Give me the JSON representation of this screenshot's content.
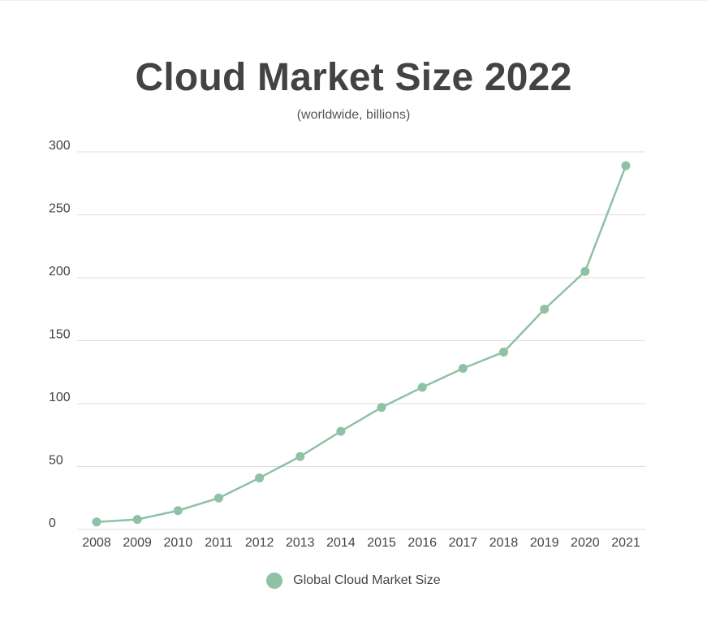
{
  "chart_data": {
    "type": "line",
    "title": "Cloud Market Size 2022",
    "subtitle": "(worldwide, billions)",
    "xlabel": "",
    "ylabel": "",
    "categories": [
      "2008",
      "2009",
      "2010",
      "2011",
      "2012",
      "2013",
      "2014",
      "2015",
      "2016",
      "2017",
      "2018",
      "2019",
      "2020",
      "2021"
    ],
    "series": [
      {
        "name": "Global Cloud Market Size",
        "values": [
          6,
          8,
          15,
          25,
          41,
          58,
          78,
          97,
          113,
          128,
          141,
          175,
          205,
          289
        ],
        "color": "#8fc1a4"
      }
    ],
    "ylim": [
      0,
      300
    ],
    "yticks": [
      "0",
      "50",
      "100",
      "150",
      "200",
      "250",
      "300"
    ],
    "grid": true,
    "legend_position": "bottom-center"
  }
}
